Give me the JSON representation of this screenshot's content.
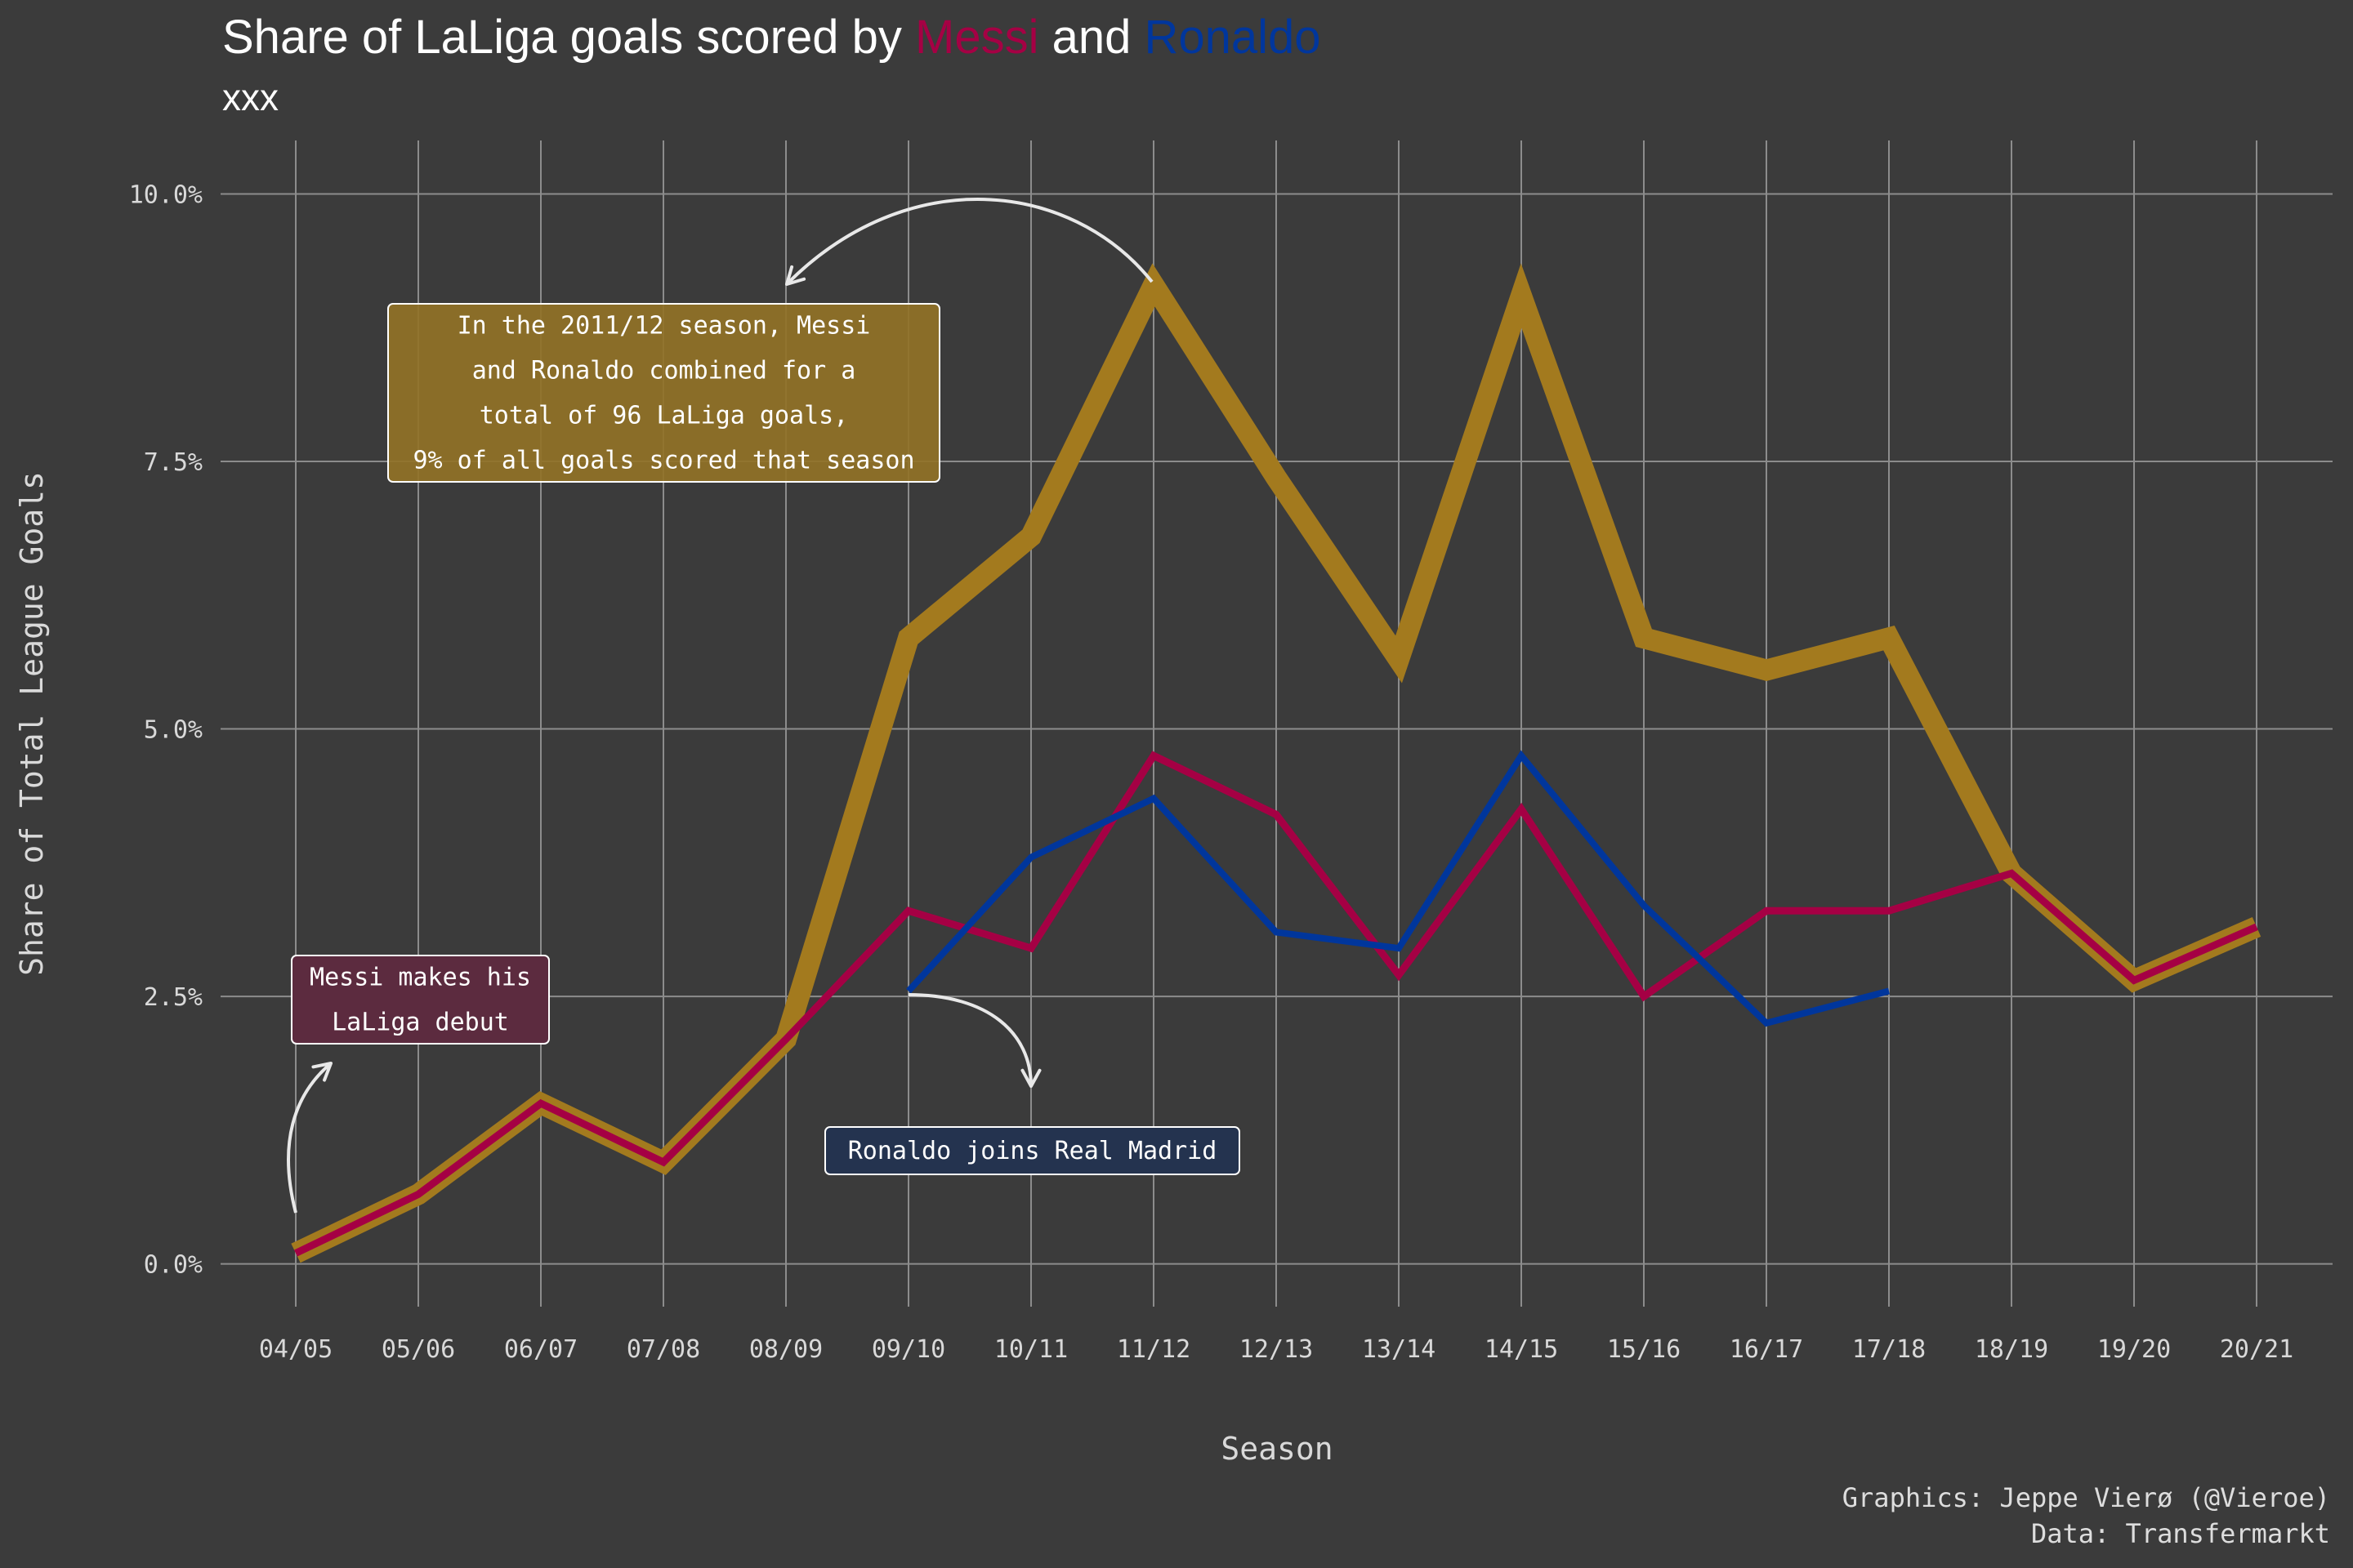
{
  "title": {
    "prefix": "Share of LaLiga goals scored by ",
    "name1": "Messi",
    "middle": " and ",
    "name2": "Ronaldo"
  },
  "subtitle": "xxx",
  "caption": {
    "line1": "Graphics: Jeppe Vierø (@Vieroe)",
    "line2": "Data: Transfermarkt"
  },
  "colors": {
    "background": "#3b3b3b",
    "messi": "#a50044",
    "ronaldo": "#00369c",
    "combined": "#a37a1e",
    "grid": "#8c8c8c",
    "text": "#e6e6e6"
  },
  "chart_data": {
    "type": "line",
    "xlabel": "Season",
    "ylabel": "Share of Total League Goals",
    "categories": [
      "04/05",
      "05/06",
      "06/07",
      "07/08",
      "08/09",
      "09/10",
      "10/11",
      "11/12",
      "12/13",
      "13/14",
      "14/15",
      "15/16",
      "16/17",
      "17/18",
      "18/19",
      "19/20",
      "20/21"
    ],
    "ylim": [
      -0.4,
      10.5
    ],
    "yticks": [
      0,
      2.5,
      5,
      7.5,
      10
    ],
    "ytick_labels": [
      "0.0%",
      "2.5%",
      "5.0%",
      "7.5%",
      "10.0%"
    ],
    "grid": true,
    "series": [
      {
        "key": "combined",
        "values": [
          0.1,
          0.65,
          1.5,
          0.95,
          2.1,
          5.85,
          6.8,
          9.15,
          7.35,
          5.65,
          9.05,
          5.85,
          5.55,
          5.85,
          3.65,
          2.65,
          3.15
        ]
      },
      {
        "key": "messi",
        "values": [
          0.1,
          0.65,
          1.5,
          0.95,
          2.1,
          3.3,
          2.95,
          4.75,
          4.2,
          2.7,
          4.25,
          2.5,
          3.3,
          3.3,
          3.65,
          2.65,
          3.15
        ]
      },
      {
        "key": "ronaldo",
        "values": [
          null,
          null,
          null,
          null,
          null,
          2.55,
          3.8,
          4.35,
          3.1,
          2.95,
          4.75,
          3.35,
          2.25,
          2.55,
          null,
          null,
          null
        ]
      }
    ],
    "annotations": [
      {
        "key": "combined_note",
        "lines": [
          "In the 2011/12 season, Messi",
          "and Ronaldo combined for a",
          "total of 96 LaLiga goals,",
          "9% of all goals scored that season"
        ]
      },
      {
        "key": "messi_note",
        "lines": [
          "Messi makes his",
          "LaLiga debut"
        ]
      },
      {
        "key": "ronaldo_note",
        "lines": [
          "Ronaldo joins Real Madrid"
        ]
      }
    ]
  }
}
